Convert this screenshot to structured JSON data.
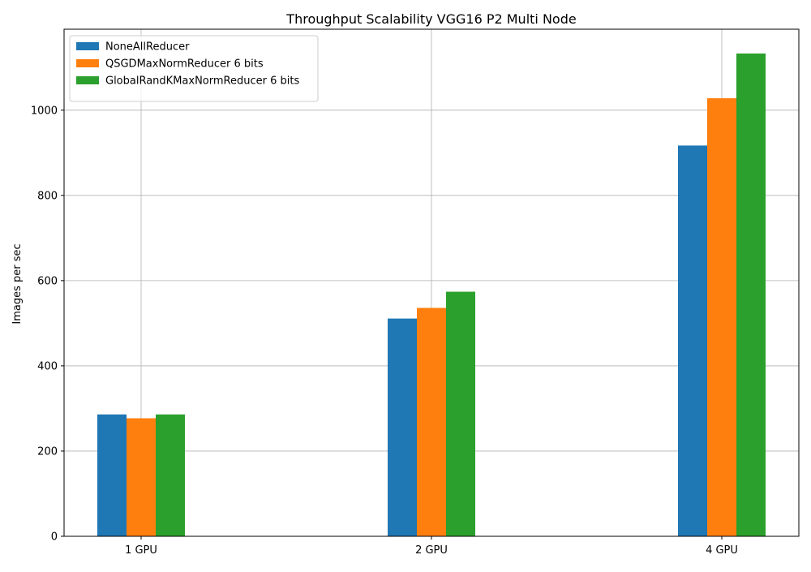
{
  "chart_data": {
    "type": "bar",
    "title": "Throughput Scalability VGG16 P2 Multi Node",
    "xlabel": "",
    "ylabel": "Images per sec",
    "categories": [
      "1 GPU",
      "2 GPU",
      "4 GPU"
    ],
    "series": [
      {
        "name": "NoneAllReducer",
        "color": "#1f77b4",
        "values": [
          286,
          511,
          917
        ]
      },
      {
        "name": "QSGDMaxNormReducer 6 bits",
        "color": "#ff7f0e",
        "values": [
          277,
          536,
          1028
        ]
      },
      {
        "name": "GlobalRandKMaxNormReducer 6 bits",
        "color": "#2ca02c",
        "values": [
          286,
          574,
          1133
        ]
      }
    ],
    "ylim": [
      0,
      1190
    ],
    "yticks": [
      0,
      200,
      400,
      600,
      800,
      1000
    ],
    "grid": true,
    "legend_position": "upper left"
  }
}
